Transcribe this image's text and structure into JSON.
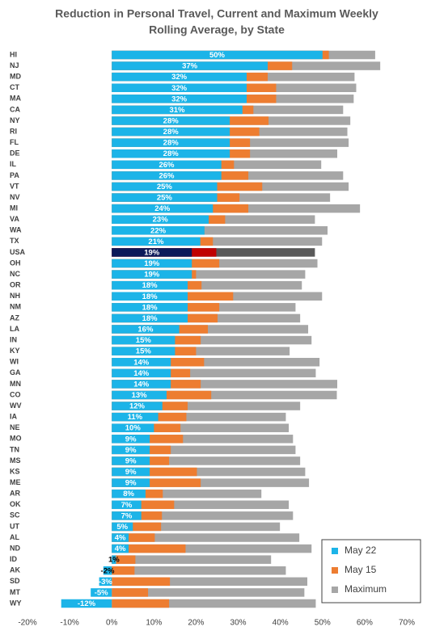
{
  "chart_data": {
    "type": "bar",
    "orientation": "horizontal",
    "overlap": true,
    "title": [
      "Reduction in Personal Travel, Current and Maximum Weekly",
      "Rolling Average, by State"
    ],
    "categories": [
      "HI",
      "NJ",
      "MD",
      "CT",
      "MA",
      "CA",
      "NY",
      "RI",
      "FL",
      "DE",
      "IL",
      "PA",
      "VT",
      "NV",
      "MI",
      "VA",
      "WA",
      "TX",
      "USA",
      "OH",
      "NC",
      "OR",
      "NH",
      "NM",
      "AZ",
      "LA",
      "IN",
      "KY",
      "WI",
      "GA",
      "MN",
      "CO",
      "WV",
      "IA",
      "NE",
      "MO",
      "TN",
      "MS",
      "KS",
      "ME",
      "AR",
      "OK",
      "SC",
      "UT",
      "AL",
      "ND",
      "ID",
      "AK",
      "SD",
      "MT",
      "WY"
    ],
    "highlight": "USA",
    "series": [
      {
        "name": "May 22",
        "color": "#1cb4e8",
        "highlight_color": "#0c1a5a",
        "values": [
          50,
          37,
          32,
          32,
          32,
          31,
          28,
          28,
          28,
          28,
          26,
          26,
          25,
          25,
          24,
          23,
          22,
          21,
          19,
          19,
          19,
          18,
          18,
          18,
          18,
          16,
          15,
          15,
          14,
          14,
          14,
          13,
          12,
          11,
          10,
          9,
          9,
          9,
          9,
          9,
          8,
          7,
          7,
          5,
          4,
          4,
          1,
          -2,
          -3,
          -5,
          -12
        ],
        "value_labels": [
          "50%",
          "37%",
          "32%",
          "32%",
          "32%",
          "31%",
          "28%",
          "28%",
          "28%",
          "28%",
          "26%",
          "26%",
          "25%",
          "25%",
          "24%",
          "23%",
          "22%",
          "21%",
          "19%",
          "19%",
          "19%",
          "18%",
          "18%",
          "18%",
          "18%",
          "16%",
          "15%",
          "15%",
          "14%",
          "14%",
          "14%",
          "13%",
          "12%",
          "11%",
          "10%",
          "9%",
          "9%",
          "9%",
          "9%",
          "9%",
          "8%",
          "7%",
          "7%",
          "5%",
          "4%",
          "4%",
          "1%",
          "-2%",
          "-3%",
          "-5%",
          "-12%"
        ]
      },
      {
        "name": "May 15",
        "color": "#ed7d31",
        "highlight_color": "#c00000",
        "values": [
          51.5,
          42.8,
          37,
          39,
          39,
          33.6,
          37.2,
          35,
          32.8,
          32.8,
          29,
          32.4,
          35.7,
          30.3,
          32.4,
          26.9,
          22,
          24,
          24.8,
          25.5,
          20,
          21.3,
          28.8,
          25.5,
          25.1,
          22.8,
          21.1,
          20,
          21.9,
          18.6,
          21.1,
          23.6,
          18,
          17.7,
          16.3,
          16.9,
          14,
          13.6,
          20.2,
          21.1,
          12.1,
          14.8,
          11.9,
          11.7,
          10.2,
          17.5,
          5.6,
          5.4,
          13.8,
          8.6,
          13.6
        ]
      },
      {
        "name": "Maximum",
        "color": "#a6a6a6",
        "highlight_color": "#595959",
        "values": [
          62.5,
          63.7,
          57.6,
          58,
          57.4,
          54.9,
          56.6,
          55.9,
          56.2,
          53.5,
          49.7,
          54.9,
          56.2,
          51.8,
          58.9,
          48.2,
          51.2,
          49.9,
          48.2,
          48.8,
          45.9,
          45.1,
          49.9,
          43.6,
          44.7,
          46.6,
          47.4,
          42.2,
          49.3,
          48.4,
          53.5,
          53.4,
          44.7,
          41.3,
          42,
          43,
          43.6,
          44.7,
          45.9,
          46.8,
          35.5,
          42,
          43,
          39.9,
          44.5,
          47.4,
          37.8,
          41.3,
          46.4,
          45.7,
          48.4
        ]
      }
    ],
    "xlim": [
      -20,
      70
    ],
    "xticks": [
      {
        "value": -20,
        "label": "-20%"
      },
      {
        "value": -10,
        "label": "-10%"
      },
      {
        "value": 0,
        "label": "0%"
      },
      {
        "value": 10,
        "label": "10%"
      },
      {
        "value": 20,
        "label": "20%"
      },
      {
        "value": 30,
        "label": "30%"
      },
      {
        "value": 40,
        "label": "40%"
      },
      {
        "value": 50,
        "label": "50%"
      },
      {
        "value": 60,
        "label": "60%"
      },
      {
        "value": 70,
        "label": "70%"
      }
    ],
    "legend": "lower right"
  }
}
